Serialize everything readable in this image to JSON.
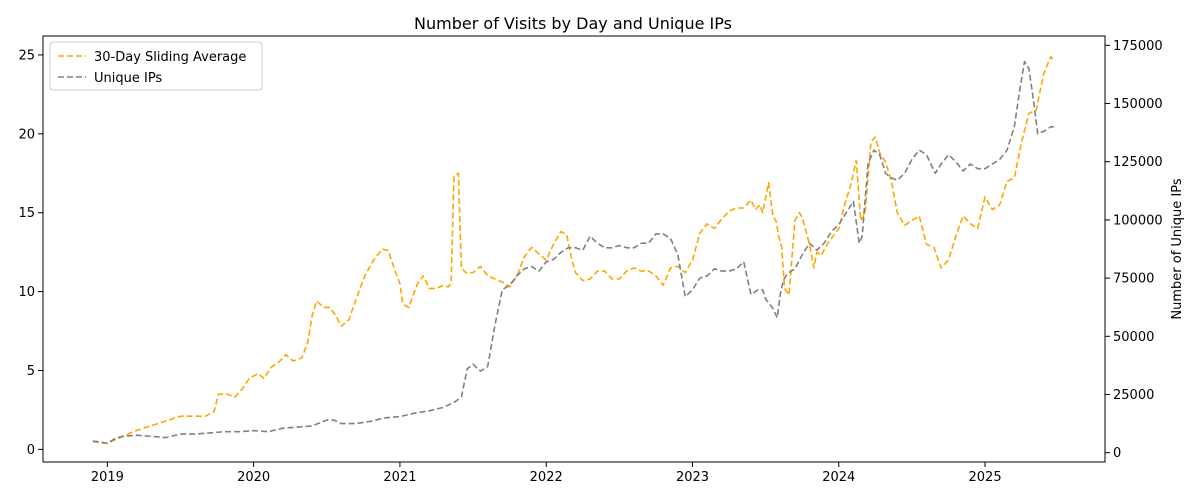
{
  "chart_data": {
    "type": "line",
    "title": "Number of Visits by Day and Unique IPs",
    "xlabel": "",
    "ylabel_left": "",
    "ylabel_right": "Number of Unique IPs",
    "x_ticks": [
      "2019",
      "2020",
      "2021",
      "2022",
      "2023",
      "2024",
      "2025"
    ],
    "y_left_ticks": [
      0,
      5,
      10,
      15,
      20,
      25
    ],
    "y_right_ticks": [
      0,
      25000,
      50000,
      75000,
      100000,
      125000,
      150000,
      175000
    ],
    "xlim": [
      2018.56,
      2025.82
    ],
    "ylim_left": [
      -0.8,
      26.2
    ],
    "ylim_right": [
      -4000,
      179000
    ],
    "grid": false,
    "legend_position": "top-left",
    "series": [
      {
        "name": "30-Day Sliding Average",
        "axis": "left",
        "color": "#ffa500",
        "style": "dashed",
        "x": [
          2018.9,
          2018.96,
          2019.0,
          2019.05,
          2019.1,
          2019.2,
          2019.3,
          2019.4,
          2019.5,
          2019.6,
          2019.67,
          2019.73,
          2019.76,
          2019.82,
          2019.87,
          2019.92,
          2019.97,
          2020.03,
          2020.07,
          2020.12,
          2020.18,
          2020.22,
          2020.27,
          2020.33,
          2020.37,
          2020.4,
          2020.43,
          2020.48,
          2020.52,
          2020.56,
          2020.6,
          2020.65,
          2020.7,
          2020.76,
          2020.82,
          2020.88,
          2020.92,
          2020.96,
          2021.0,
          2021.02,
          2021.06,
          2021.12,
          2021.16,
          2021.2,
          2021.25,
          2021.3,
          2021.33,
          2021.35,
          2021.37,
          2021.4,
          2021.42,
          2021.45,
          2021.5,
          2021.55,
          2021.6,
          2021.65,
          2021.7,
          2021.75,
          2021.8,
          2021.85,
          2021.9,
          2021.95,
          2022.0,
          2022.05,
          2022.1,
          2022.14,
          2022.17,
          2022.2,
          2022.25,
          2022.3,
          2022.35,
          2022.4,
          2022.45,
          2022.5,
          2022.55,
          2022.6,
          2022.65,
          2022.7,
          2022.75,
          2022.8,
          2022.85,
          2022.9,
          2022.95,
          2023.0,
          2023.05,
          2023.1,
          2023.15,
          2023.2,
          2023.25,
          2023.3,
          2023.35,
          2023.4,
          2023.43,
          2023.46,
          2023.48,
          2023.52,
          2023.55,
          2023.57,
          2023.59,
          2023.61,
          2023.63,
          2023.66,
          2023.7,
          2023.73,
          2023.75,
          2023.78,
          2023.8,
          2023.83,
          2023.85,
          2023.88,
          2023.92,
          2023.96,
          2024.0,
          2024.04,
          2024.08,
          2024.12,
          2024.15,
          2024.18,
          2024.22,
          2024.25,
          2024.28,
          2024.32,
          2024.36,
          2024.4,
          2024.45,
          2024.5,
          2024.55,
          2024.6,
          2024.65,
          2024.7,
          2024.75,
          2024.8,
          2024.85,
          2024.9,
          2024.95,
          2025.0,
          2025.05,
          2025.1,
          2025.15,
          2025.2,
          2025.25,
          2025.3,
          2025.35,
          2025.4,
          2025.45,
          2025.47
        ],
        "y": [
          0.5,
          0.4,
          0.4,
          0.6,
          0.8,
          1.2,
          1.5,
          1.8,
          2.1,
          2.1,
          2.1,
          2.4,
          3.5,
          3.5,
          3.3,
          3.8,
          4.5,
          4.8,
          4.5,
          5.2,
          5.6,
          6.0,
          5.6,
          5.8,
          6.8,
          8.5,
          9.4,
          9.0,
          9.0,
          8.5,
          7.8,
          8.2,
          9.5,
          11.0,
          12.0,
          12.7,
          12.6,
          11.5,
          10.5,
          9.2,
          9.0,
          10.5,
          11.0,
          10.2,
          10.2,
          10.4,
          10.3,
          10.5,
          17.3,
          17.5,
          11.5,
          11.2,
          11.2,
          11.6,
          11.0,
          10.8,
          10.6,
          10.3,
          11.0,
          12.2,
          12.8,
          12.4,
          12.0,
          13.0,
          13.8,
          13.6,
          12.2,
          11.2,
          10.7,
          10.8,
          11.3,
          11.3,
          10.8,
          10.8,
          11.3,
          11.5,
          11.3,
          11.3,
          11.0,
          10.4,
          11.5,
          11.6,
          11.2,
          12.0,
          13.7,
          14.3,
          14.0,
          14.6,
          15.1,
          15.3,
          15.3,
          15.8,
          15.2,
          15.5,
          15.0,
          16.9,
          14.8,
          14.5,
          13.5,
          12.8,
          10.2,
          9.8,
          14.5,
          15.0,
          14.7,
          13.7,
          13.0,
          11.5,
          12.5,
          12.3,
          13.0,
          13.5,
          14.0,
          15.5,
          16.7,
          18.3,
          14.5,
          15.0,
          19.5,
          19.8,
          18.8,
          18.2,
          17.0,
          15.0,
          14.2,
          14.5,
          14.8,
          13.0,
          12.8,
          11.5,
          12.0,
          13.5,
          14.8,
          14.3,
          14.0,
          16.0,
          15.2,
          15.5,
          17.0,
          17.2,
          19.5,
          21.3,
          21.5,
          23.8,
          24.9,
          24.6
        ]
      },
      {
        "name": "Unique IPs",
        "axis": "right",
        "color": "#808080",
        "style": "dashed",
        "x": [
          2018.9,
          2018.96,
          2019.0,
          2019.05,
          2019.1,
          2019.2,
          2019.3,
          2019.4,
          2019.5,
          2019.6,
          2019.7,
          2019.8,
          2019.9,
          2020.0,
          2020.1,
          2020.2,
          2020.3,
          2020.4,
          2020.5,
          2020.55,
          2020.6,
          2020.7,
          2020.8,
          2020.9,
          2021.0,
          2021.1,
          2021.2,
          2021.3,
          2021.38,
          2021.42,
          2021.46,
          2021.5,
          2021.55,
          2021.6,
          2021.65,
          2021.7,
          2021.75,
          2021.8,
          2021.85,
          2021.9,
          2021.95,
          2022.0,
          2022.05,
          2022.1,
          2022.15,
          2022.2,
          2022.25,
          2022.3,
          2022.35,
          2022.4,
          2022.45,
          2022.5,
          2022.55,
          2022.6,
          2022.65,
          2022.7,
          2022.75,
          2022.8,
          2022.85,
          2022.9,
          2022.95,
          2023.0,
          2023.05,
          2023.1,
          2023.15,
          2023.2,
          2023.25,
          2023.3,
          2023.35,
          2023.4,
          2023.45,
          2023.48,
          2023.5,
          2023.55,
          2023.58,
          2023.6,
          2023.62,
          2023.65,
          2023.7,
          2023.75,
          2023.8,
          2023.85,
          2023.9,
          2023.95,
          2024.0,
          2024.05,
          2024.1,
          2024.14,
          2024.16,
          2024.2,
          2024.24,
          2024.28,
          2024.32,
          2024.36,
          2024.4,
          2024.45,
          2024.5,
          2024.55,
          2024.6,
          2024.63,
          2024.66,
          2024.7,
          2024.75,
          2024.8,
          2024.85,
          2024.9,
          2024.95,
          2025.0,
          2025.05,
          2025.1,
          2025.15,
          2025.2,
          2025.24,
          2025.27,
          2025.3,
          2025.33,
          2025.36,
          2025.4,
          2025.45,
          2025.47
        ],
        "y": [
          5000,
          4500,
          4000,
          6000,
          7000,
          7500,
          7000,
          6500,
          8000,
          8000,
          8500,
          9000,
          9000,
          9500,
          9000,
          10500,
          11000,
          11500,
          14000,
          14000,
          12500,
          12500,
          13500,
          15000,
          15500,
          17000,
          18000,
          19500,
          22000,
          24000,
          36000,
          38000,
          35000,
          37000,
          55000,
          70000,
          72000,
          76000,
          79000,
          80000,
          78000,
          82000,
          83000,
          86000,
          88000,
          88000,
          87000,
          93000,
          90000,
          88000,
          88000,
          89000,
          88000,
          88000,
          90000,
          90000,
          94000,
          94000,
          92000,
          85000,
          67000,
          70000,
          75000,
          76000,
          79000,
          78000,
          78000,
          79000,
          82000,
          68000,
          70000,
          70000,
          66000,
          62000,
          58000,
          68000,
          74000,
          77000,
          79000,
          85000,
          90000,
          87000,
          90000,
          95000,
          98000,
          103000,
          108000,
          90000,
          93000,
          124000,
          130000,
          128000,
          120000,
          118000,
          117000,
          120000,
          126000,
          130000,
          128000,
          124000,
          120000,
          124000,
          128000,
          125000,
          121000,
          124000,
          122000,
          122000,
          124000,
          126000,
          130000,
          140000,
          157000,
          168000,
          165000,
          152000,
          137000,
          138000,
          140000,
          140000
        ]
      }
    ]
  }
}
